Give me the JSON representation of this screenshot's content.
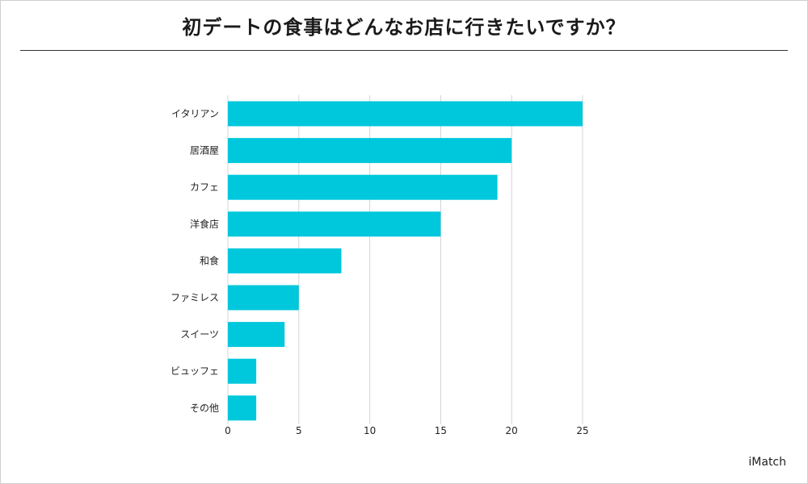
{
  "header": {
    "title": "初デートの食事はどんなお店に行きたいですか？"
  },
  "footer": {
    "brand": "iMatch"
  },
  "chart_data": {
    "type": "bar",
    "orientation": "horizontal",
    "categories": [
      "イタリアン",
      "居酒屋",
      "カフェ",
      "洋食店",
      "和食",
      "ファミレス",
      "スイーツ",
      "ビュッフェ",
      "その他"
    ],
    "values": [
      25,
      20,
      19,
      15,
      8,
      5,
      4,
      2,
      2
    ],
    "xlim": [
      0,
      25
    ],
    "xticks": [
      "0",
      "5",
      "10",
      "15",
      "20",
      "25"
    ],
    "grid": "vertical",
    "bar_color": "#00c8dc",
    "grid_color": "#d4d4d4"
  }
}
